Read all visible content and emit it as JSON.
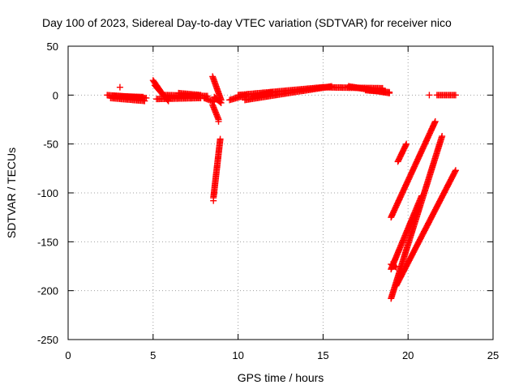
{
  "chart_data": {
    "type": "scatter",
    "title": "Day 100 of 2023, Sidereal Day-to-day VTEC variation (SDTVAR) for receiver nico",
    "xlabel": "GPS time / hours",
    "ylabel": "SDTVAR / TECUs",
    "xlim": [
      0,
      25
    ],
    "ylim": [
      -250,
      50
    ],
    "x_ticks": [
      0,
      5,
      10,
      15,
      20,
      25
    ],
    "y_ticks": [
      50,
      0,
      -50,
      -100,
      -150,
      -200,
      -250
    ],
    "grid": true,
    "marker": "+",
    "color": "#ff0000",
    "segments": [
      {
        "x": [
          2.3,
          4.6
        ],
        "y": [
          0,
          -3
        ]
      },
      {
        "x": [
          2.5,
          4.5
        ],
        "y": [
          -3,
          -6
        ]
      },
      {
        "x": [
          2.6,
          4.4
        ],
        "y": [
          -1,
          -2
        ]
      },
      {
        "x": [
          5.0,
          5.6
        ],
        "y": [
          15,
          0
        ]
      },
      {
        "x": [
          5.1,
          5.9
        ],
        "y": [
          10,
          -6
        ]
      },
      {
        "x": [
          5.2,
          7.8
        ],
        "y": [
          -4,
          -3
        ]
      },
      {
        "x": [
          5.7,
          8.2
        ],
        "y": [
          0,
          -1
        ]
      },
      {
        "x": [
          6.5,
          7.8
        ],
        "y": [
          2,
          0
        ]
      },
      {
        "x": [
          8.0,
          8.6
        ],
        "y": [
          -3,
          -7
        ]
      },
      {
        "x": [
          8.5,
          9.0
        ],
        "y": [
          19,
          -5
        ]
      },
      {
        "x": [
          8.5,
          8.85
        ],
        "y": [
          -10,
          -25
        ]
      },
      {
        "x": [
          8.6,
          9.0
        ],
        "y": [
          -2,
          -8
        ]
      },
      {
        "x": [
          8.55,
          8.95
        ],
        "y": [
          -105,
          -45
        ]
      },
      {
        "x": [
          9.5,
          10.5
        ],
        "y": [
          -5,
          0
        ]
      },
      {
        "x": [
          10.0,
          15.0
        ],
        "y": [
          0,
          8
        ]
      },
      {
        "x": [
          10.4,
          15.5
        ],
        "y": [
          -5,
          9
        ]
      },
      {
        "x": [
          10.8,
          12.0
        ],
        "y": [
          -2,
          3
        ]
      },
      {
        "x": [
          15.0,
          18.5
        ],
        "y": [
          8,
          7
        ]
      },
      {
        "x": [
          16.5,
          18.9
        ],
        "y": [
          9,
          2
        ]
      },
      {
        "x": [
          17.5,
          18.9
        ],
        "y": [
          5,
          3
        ]
      },
      {
        "x": [
          19.0,
          21.6
        ],
        "y": [
          -125,
          -27
        ]
      },
      {
        "x": [
          19.4,
          19.9
        ],
        "y": [
          -68,
          -50
        ]
      },
      {
        "x": [
          19.0,
          22.0
        ],
        "y": [
          -208,
          -42
        ]
      },
      {
        "x": [
          19.0,
          20.8
        ],
        "y": [
          -178,
          -103
        ]
      },
      {
        "x": [
          19.3,
          22.8
        ],
        "y": [
          -195,
          -77
        ]
      },
      {
        "x": [
          19.0,
          19.3
        ],
        "y": [
          -173,
          -176
        ]
      },
      {
        "x": [
          21.7,
          22.8
        ],
        "y": [
          0,
          0
        ]
      }
    ],
    "points": [
      {
        "x": 3.05,
        "y": 8
      },
      {
        "x": 21.25,
        "y": 0
      },
      {
        "x": 8.55,
        "y": -108
      },
      {
        "x": 8.85,
        "y": -27
      }
    ]
  }
}
